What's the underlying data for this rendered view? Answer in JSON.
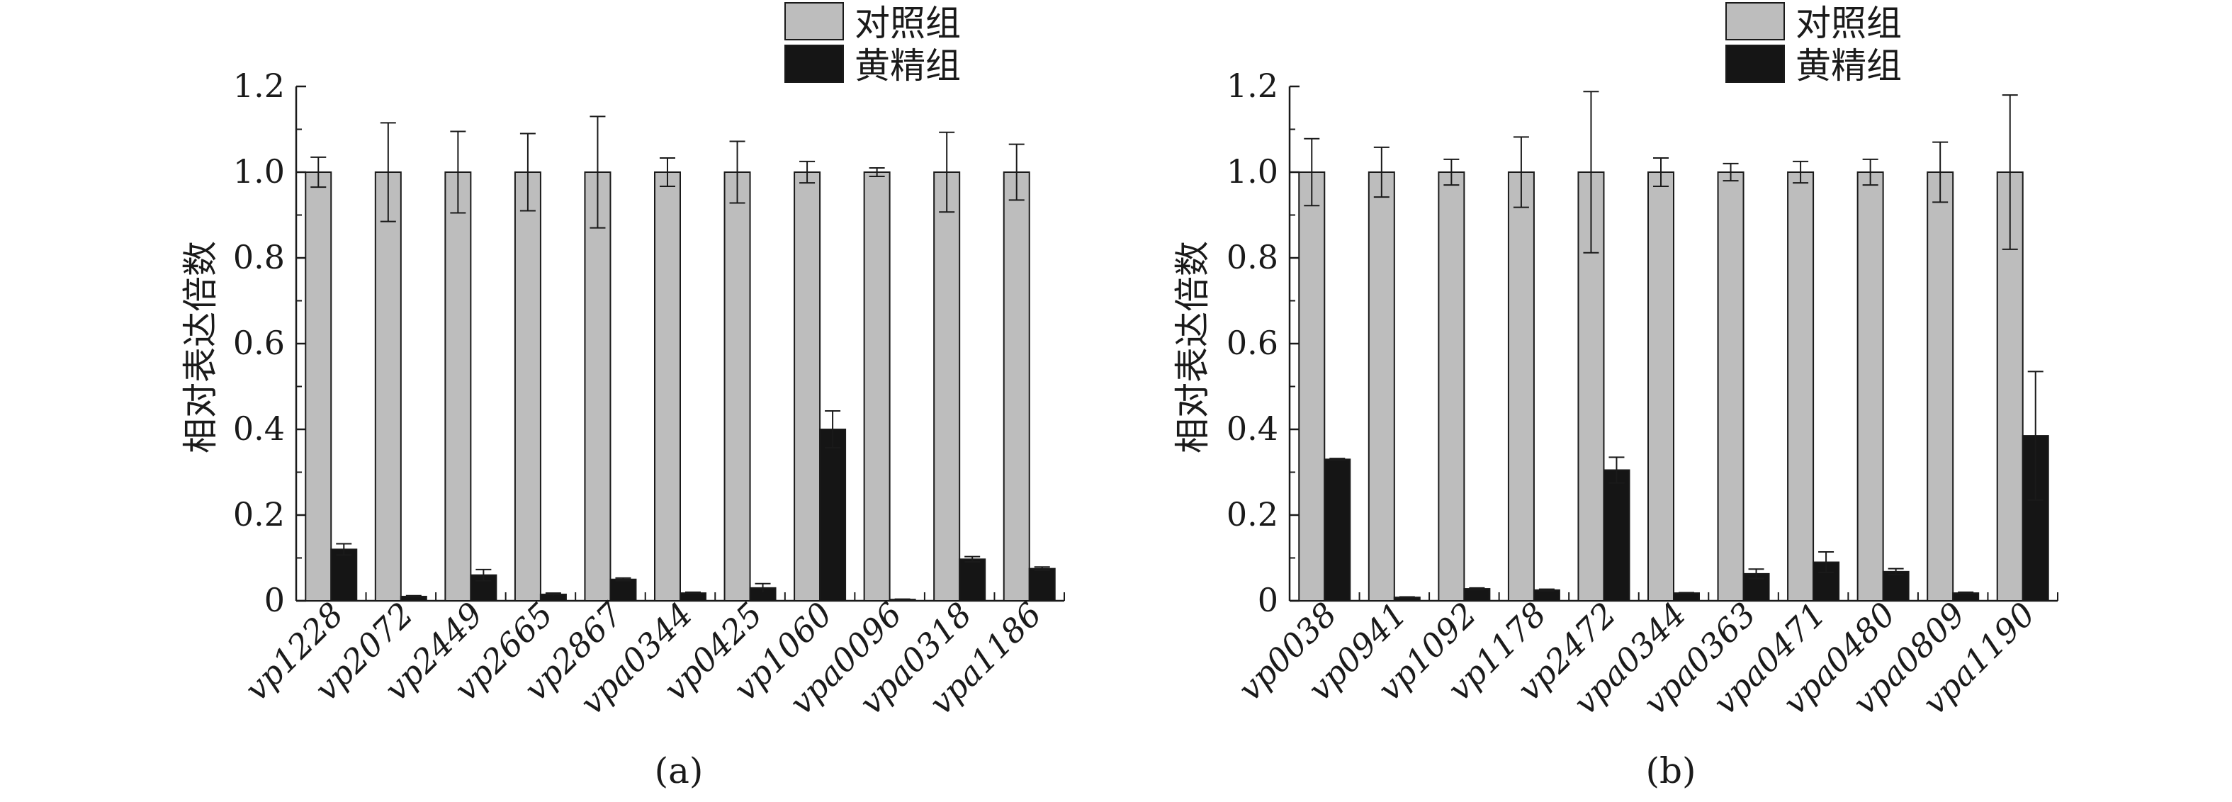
{
  "legend": {
    "control": "对照组",
    "flavonoid": "黄精组"
  },
  "colors": {
    "control": "#bdbdbd",
    "flavonoid": "#151515",
    "axis": "#1a1a1a"
  },
  "chart_data": [
    {
      "type": "bar",
      "panel_label": "(a)",
      "ylabel": "相对表达倍数",
      "ylim": [
        0,
        1.2
      ],
      "yticks": [
        "0",
        "0.2",
        "0.4",
        "0.6",
        "0.8",
        "1.0",
        "1.2"
      ],
      "categories": [
        "vp1228",
        "vp2072",
        "vp2449",
        "vp2665",
        "vp2867",
        "vpa0344",
        "vp0425",
        "vp1060",
        "vpa0096",
        "vpa0318",
        "vpa1186"
      ],
      "legend_position": "top-right",
      "series": [
        {
          "name": "对照组",
          "values": [
            1.0,
            1.0,
            1.0,
            1.0,
            1.0,
            1.0,
            1.0,
            1.0,
            1.0,
            1.0,
            1.0
          ],
          "errors": [
            0.035,
            0.115,
            0.095,
            0.09,
            0.13,
            0.033,
            0.072,
            0.025,
            0.01,
            0.093,
            0.065
          ]
        },
        {
          "name": "黄精组",
          "values": [
            0.12,
            0.01,
            0.06,
            0.015,
            0.05,
            0.018,
            0.03,
            0.4,
            0.003,
            0.097,
            0.075
          ],
          "errors": [
            0.013,
            0.002,
            0.013,
            0.003,
            0.003,
            0.002,
            0.01,
            0.043,
            0.001,
            0.006,
            0.004
          ]
        }
      ]
    },
    {
      "type": "bar",
      "panel_label": "(b)",
      "ylabel": "相对表达倍数",
      "ylim": [
        0,
        1.2
      ],
      "yticks": [
        "0",
        "0.2",
        "0.4",
        "0.6",
        "0.8",
        "1.0",
        "1.2"
      ],
      "categories": [
        "vp0038",
        "vp0941",
        "vp1092",
        "vp1178",
        "vp2472",
        "vpa0344",
        "vpa0363",
        "vpa0471",
        "vpa0480",
        "vpa0809",
        "vpa1190"
      ],
      "legend_position": "top-right",
      "series": [
        {
          "name": "对照组",
          "values": [
            1.0,
            1.0,
            1.0,
            1.0,
            1.0,
            1.0,
            1.0,
            1.0,
            1.0,
            1.0,
            1.0
          ],
          "errors": [
            0.078,
            0.058,
            0.03,
            0.082,
            0.188,
            0.033,
            0.02,
            0.025,
            0.03,
            0.07,
            0.18
          ]
        },
        {
          "name": "黄精组",
          "values": [
            0.33,
            0.008,
            0.028,
            0.025,
            0.305,
            0.018,
            0.063,
            0.09,
            0.068,
            0.018,
            0.385
          ],
          "errors": [
            0.002,
            0.001,
            0.002,
            0.002,
            0.03,
            0.001,
            0.011,
            0.024,
            0.007,
            0.002,
            0.15
          ]
        }
      ]
    }
  ]
}
